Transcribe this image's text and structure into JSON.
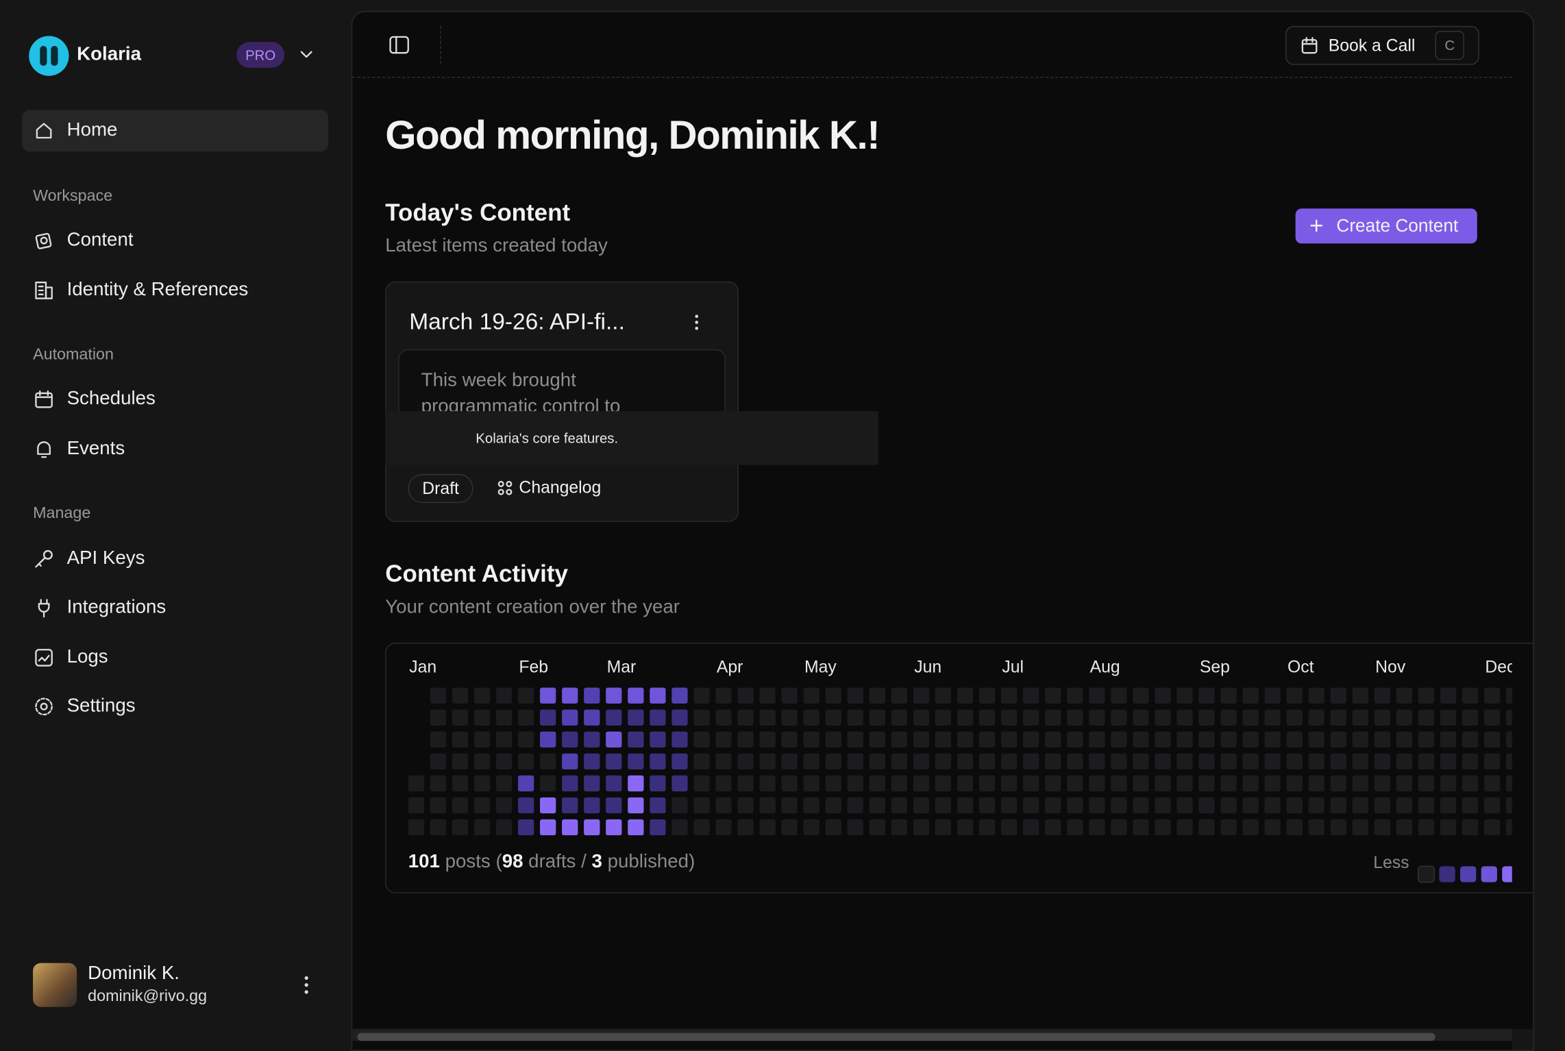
{
  "sidebar": {
    "brand": "Kolaria",
    "badge": "PRO",
    "home": "Home",
    "sections": [
      {
        "title": "Workspace",
        "items": [
          "Content",
          "Identity & References"
        ]
      },
      {
        "title": "Automation",
        "items": [
          "Schedules",
          "Events"
        ]
      },
      {
        "title": "Manage",
        "items": [
          "API Keys",
          "Integrations",
          "Logs",
          "Settings"
        ]
      }
    ],
    "user": {
      "name": "Dominik K.",
      "email": "dominik@rivo.gg"
    }
  },
  "topbar": {
    "button": "Book a Call",
    "shortcut": "C"
  },
  "greeting": "Good morning, Dominik K.!",
  "today": {
    "title": "Today's Content",
    "subtitle": "Latest items created today",
    "action": "Create Content",
    "card": {
      "title": "March 19-26: API-fi...",
      "preview": "This week brought programmatic control to",
      "tooltip": "Kolaria's core features.",
      "status": "Draft",
      "tag": "Changelog"
    }
  },
  "activity": {
    "title": "Content Activity",
    "subtitle": "Your content creation over the year",
    "months": [
      "Jan",
      "Feb",
      "Mar",
      "Apr",
      "May",
      "Jun",
      "Jul",
      "Aug",
      "Sep",
      "Oct",
      "Nov",
      "Dec"
    ],
    "colors": [
      "#1c1c1e",
      "#3a2f7d",
      "#5241b0",
      "#6e55d9",
      "#8a68f5"
    ],
    "levels": [
      [
        null,
        0,
        0,
        0,
        0,
        0,
        3,
        3,
        2,
        3,
        3,
        3,
        2,
        0,
        0,
        0,
        0,
        0,
        0,
        0,
        0,
        0,
        0,
        0,
        0,
        0,
        0,
        0,
        0,
        0,
        0,
        0,
        0,
        0,
        0,
        0,
        0,
        0,
        0,
        0,
        0,
        0,
        0,
        0,
        0,
        0,
        0,
        0,
        0,
        0,
        0
      ],
      [
        null,
        0,
        0,
        0,
        0,
        0,
        1,
        2,
        2,
        1,
        1,
        1,
        1,
        0,
        0,
        0,
        0,
        0,
        0,
        0,
        0,
        0,
        0,
        0,
        0,
        0,
        0,
        0,
        0,
        0,
        0,
        0,
        0,
        0,
        0,
        0,
        0,
        0,
        0,
        0,
        0,
        0,
        0,
        0,
        0,
        0,
        0,
        0,
        0,
        0,
        0
      ],
      [
        null,
        0,
        0,
        0,
        0,
        0,
        2,
        1,
        1,
        3,
        1,
        1,
        1,
        0,
        0,
        0,
        0,
        0,
        0,
        0,
        0,
        0,
        0,
        0,
        0,
        0,
        0,
        0,
        0,
        0,
        0,
        0,
        0,
        0,
        0,
        0,
        0,
        0,
        0,
        0,
        0,
        0,
        0,
        0,
        0,
        0,
        0,
        0,
        0,
        0,
        0
      ],
      [
        null,
        0,
        0,
        0,
        0,
        0,
        0,
        2,
        1,
        1,
        1,
        1,
        1,
        0,
        0,
        0,
        0,
        0,
        0,
        0,
        0,
        0,
        0,
        0,
        0,
        0,
        0,
        0,
        0,
        0,
        0,
        0,
        0,
        0,
        0,
        0,
        0,
        0,
        0,
        0,
        0,
        0,
        0,
        0,
        0,
        0,
        0,
        0,
        0,
        0,
        0
      ],
      [
        0,
        0,
        0,
        0,
        0,
        2,
        0,
        1,
        1,
        1,
        4,
        1,
        1,
        0,
        0,
        0,
        0,
        0,
        0,
        0,
        0,
        0,
        0,
        0,
        0,
        0,
        0,
        0,
        0,
        0,
        0,
        0,
        0,
        0,
        0,
        0,
        0,
        0,
        0,
        0,
        0,
        0,
        0,
        0,
        0,
        0,
        0,
        0,
        0,
        0,
        0
      ],
      [
        0,
        0,
        0,
        0,
        0,
        1,
        4,
        1,
        1,
        1,
        4,
        1,
        0,
        0,
        0,
        0,
        0,
        0,
        0,
        0,
        0,
        0,
        0,
        0,
        0,
        0,
        0,
        0,
        0,
        0,
        0,
        0,
        0,
        0,
        0,
        0,
        0,
        0,
        0,
        0,
        0,
        0,
        0,
        0,
        0,
        0,
        0,
        0,
        0,
        0,
        0
      ],
      [
        0,
        0,
        0,
        0,
        0,
        1,
        4,
        4,
        4,
        4,
        4,
        1,
        0,
        0,
        0,
        0,
        0,
        0,
        0,
        0,
        0,
        0,
        0,
        0,
        0,
        0,
        0,
        0,
        0,
        0,
        0,
        0,
        0,
        0,
        0,
        0,
        0,
        0,
        0,
        0,
        0,
        0,
        0,
        0,
        0,
        0,
        0,
        0,
        0,
        0,
        0
      ]
    ],
    "summary": {
      "total": 101,
      "total_label": "posts",
      "open": "(",
      "drafts": 98,
      "drafts_label": "drafts",
      "sep": "/",
      "published": 3,
      "published_label": "published",
      "close": ")"
    },
    "legend_label": "Less"
  }
}
